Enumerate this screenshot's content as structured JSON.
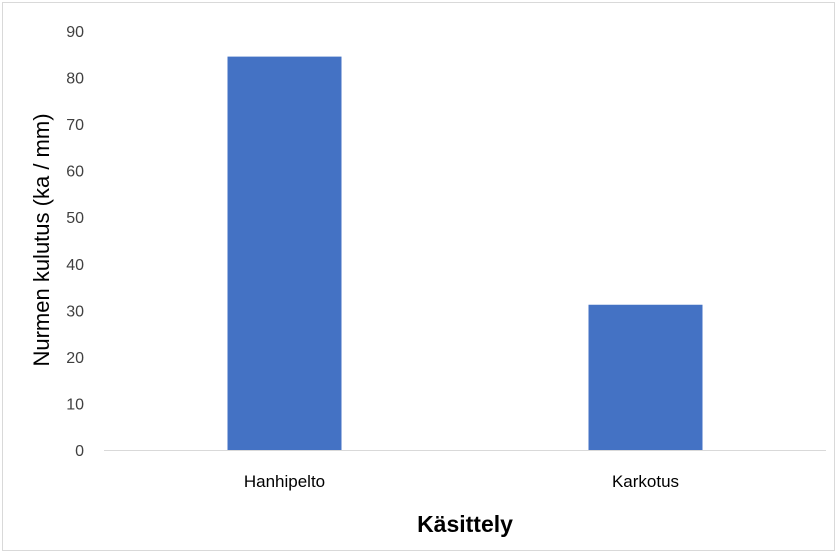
{
  "chart_data": {
    "type": "bar",
    "categories": [
      "Hanhipelto",
      "Karkotus"
    ],
    "values": [
      84.5,
      31.2
    ],
    "xlabel": "Käsittely",
    "ylabel": "Nurmen kulutus (ka / mm)",
    "ylim": [
      0,
      90
    ],
    "yticks": [
      0,
      10,
      20,
      30,
      40,
      50,
      60,
      70,
      80,
      90
    ],
    "grid": false,
    "legend": "none",
    "bar_color": "#4472C4",
    "axis_color": "#d9d9d9"
  }
}
